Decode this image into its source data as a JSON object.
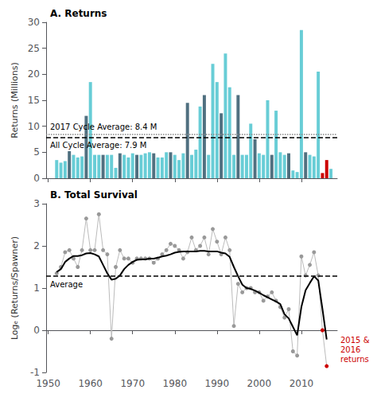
{
  "chart_data": [
    {
      "type": "bar",
      "title": "A. Returns",
      "y_label": "Returns (Millions)",
      "x": [
        1952,
        1953,
        1954,
        1955,
        1956,
        1957,
        1958,
        1959,
        1960,
        1961,
        1962,
        1963,
        1964,
        1965,
        1966,
        1967,
        1968,
        1969,
        1970,
        1971,
        1972,
        1973,
        1974,
        1975,
        1976,
        1977,
        1978,
        1979,
        1980,
        1981,
        1982,
        1983,
        1984,
        1985,
        1986,
        1987,
        1988,
        1989,
        1990,
        1991,
        1992,
        1993,
        1994,
        1995,
        1996,
        1997,
        1998,
        1999,
        2000,
        2001,
        2002,
        2003,
        2004,
        2005,
        2006,
        2007,
        2008,
        2009,
        2010,
        2011,
        2012,
        2013,
        2014,
        2015,
        2016,
        2017
      ],
      "values": [
        3.5,
        3.0,
        3.3,
        5.2,
        4.5,
        4.0,
        4.2,
        12.0,
        18.5,
        4.5,
        4.5,
        4.5,
        4.5,
        4.5,
        2.0,
        4.8,
        4.5,
        4.0,
        4.8,
        4.5,
        4.5,
        4.8,
        5.0,
        4.8,
        4.0,
        4.0,
        5.0,
        5.0,
        4.5,
        3.5,
        4.8,
        14.5,
        4.5,
        5.5,
        13.8,
        16.0,
        4.5,
        22.0,
        18.5,
        12.5,
        24.0,
        17.5,
        4.5,
        16.0,
        4.5,
        4.5,
        10.5,
        7.5,
        4.8,
        4.5,
        15.0,
        4.5,
        13.0,
        5.0,
        4.5,
        4.8,
        1.5,
        1.2,
        28.5,
        5.0,
        4.5,
        4.2,
        20.5,
        1.0,
        3.5,
        1.8
      ],
      "colors": [
        "#68CDD6",
        "#68CDD6",
        "#68CDD6",
        "#507080",
        "#68CDD6",
        "#68CDD6",
        "#68CDD6",
        "#507080",
        "#68CDD6",
        "#68CDD6",
        "#68CDD6",
        "#507080",
        "#68CDD6",
        "#68CDD6",
        "#68CDD6",
        "#507080",
        "#68CDD6",
        "#68CDD6",
        "#68CDD6",
        "#507080",
        "#68CDD6",
        "#68CDD6",
        "#68CDD6",
        "#507080",
        "#68CDD6",
        "#68CDD6",
        "#68CDD6",
        "#507080",
        "#68CDD6",
        "#68CDD6",
        "#68CDD6",
        "#507080",
        "#68CDD6",
        "#68CDD6",
        "#68CDD6",
        "#507080",
        "#68CDD6",
        "#68CDD6",
        "#68CDD6",
        "#507080",
        "#68CDD6",
        "#68CDD6",
        "#68CDD6",
        "#507080",
        "#68CDD6",
        "#68CDD6",
        "#68CDD6",
        "#507080",
        "#68CDD6",
        "#68CDD6",
        "#68CDD6",
        "#507080",
        "#68CDD6",
        "#68CDD6",
        "#68CDD6",
        "#507080",
        "#68CDD6",
        "#68CDD6",
        "#68CDD6",
        "#507080",
        "#68CDD6",
        "#68CDD6",
        "#68CDD6",
        "#CC0000",
        "#CC0000",
        "#68CDD6"
      ],
      "xlim": [
        1949.5,
        2018.5
      ],
      "xticks": [
        1950,
        1960,
        1970,
        1980,
        1990,
        2000,
        2010
      ],
      "ylim": [
        0,
        30
      ],
      "yticks": [
        0,
        5,
        10,
        15,
        20,
        25,
        30
      ],
      "tick_labels": "y",
      "grid": false,
      "reference_lines": [
        {
          "value": 8.4,
          "label": "2017 Cycle Average: 8.4 M",
          "color": "#888888",
          "line_style": "dotted"
        },
        {
          "value": 7.9,
          "label": "All Cycle Average: 7.9 M",
          "color": "#000000",
          "line_style": "dashed"
        }
      ]
    },
    {
      "type": "line",
      "title": "B. Total Survival",
      "y_label": "Logₑ (Returns/Spawner)",
      "x": [
        1952,
        1953,
        1954,
        1955,
        1956,
        1957,
        1958,
        1959,
        1960,
        1961,
        1962,
        1963,
        1964,
        1965,
        1966,
        1967,
        1968,
        1969,
        1970,
        1971,
        1972,
        1973,
        1974,
        1975,
        1976,
        1977,
        1978,
        1979,
        1980,
        1981,
        1982,
        1983,
        1984,
        1985,
        1986,
        1987,
        1988,
        1989,
        1990,
        1991,
        1992,
        1993,
        1994,
        1995,
        1996,
        1997,
        1998,
        1999,
        2000,
        2001,
        2002,
        2003,
        2004,
        2005,
        2006,
        2007,
        2008,
        2009,
        2010,
        2011,
        2012,
        2013,
        2014,
        2015,
        2016
      ],
      "series": [
        {
          "type": "line",
          "color": "#BBBBBB",
          "marker": "circle",
          "values": [
            1.35,
            1.5,
            1.85,
            1.9,
            1.7,
            1.5,
            1.9,
            2.65,
            1.9,
            1.9,
            2.75,
            1.9,
            1.8,
            -0.2,
            1.5,
            1.9,
            1.7,
            1.7,
            1.6,
            1.7,
            1.7,
            1.7,
            1.7,
            1.6,
            1.7,
            1.8,
            1.9,
            2.05,
            2.0,
            1.9,
            1.7,
            1.85,
            2.2,
            1.9,
            2.0,
            2.2,
            1.8,
            2.4,
            2.1,
            1.8,
            2.2,
            1.9,
            0.1,
            1.1,
            0.9,
            1.0,
            1.0,
            0.9,
            0.9,
            0.7,
            0.8,
            0.9,
            0.7,
            0.55,
            0.3,
            0.5,
            -0.5,
            -0.6,
            1.75,
            1.3,
            1.55,
            1.85,
            1.3,
            0.0,
            -0.85
          ],
          "colors": [
            "#999999",
            "#999999",
            "#999999",
            "#999999",
            "#999999",
            "#999999",
            "#999999",
            "#999999",
            "#999999",
            "#999999",
            "#999999",
            "#999999",
            "#999999",
            "#999999",
            "#999999",
            "#999999",
            "#999999",
            "#999999",
            "#999999",
            "#999999",
            "#999999",
            "#999999",
            "#999999",
            "#999999",
            "#999999",
            "#999999",
            "#999999",
            "#999999",
            "#999999",
            "#999999",
            "#999999",
            "#999999",
            "#999999",
            "#999999",
            "#999999",
            "#999999",
            "#999999",
            "#999999",
            "#999999",
            "#999999",
            "#999999",
            "#999999",
            "#999999",
            "#999999",
            "#999999",
            "#999999",
            "#999999",
            "#999999",
            "#999999",
            "#999999",
            "#999999",
            "#999999",
            "#999999",
            "#999999",
            "#999999",
            "#999999",
            "#999999",
            "#999999",
            "#999999",
            "#999999",
            "#999999",
            "#999999",
            "#999999",
            "#CC0000",
            "#CC0000"
          ]
        },
        {
          "type": "line",
          "color": "#000000",
          "marker": "none",
          "values": [
            1.38,
            1.45,
            1.62,
            1.7,
            1.76,
            1.76,
            1.78,
            1.82,
            1.83,
            1.8,
            1.75,
            1.55,
            1.35,
            1.2,
            1.22,
            1.3,
            1.45,
            1.55,
            1.62,
            1.67,
            1.68,
            1.68,
            1.7,
            1.7,
            1.72,
            1.75,
            1.77,
            1.8,
            1.84,
            1.86,
            1.87,
            1.87,
            1.87,
            1.87,
            1.88,
            1.88,
            1.87,
            1.87,
            1.87,
            1.84,
            1.82,
            1.74,
            1.5,
            1.28,
            1.08,
            1.0,
            0.98,
            0.94,
            0.89,
            0.83,
            0.78,
            0.73,
            0.68,
            0.62,
            0.38,
            0.28,
            0.08,
            -0.12,
            0.55,
            0.95,
            1.12,
            1.28,
            1.18,
            0.5,
            -0.22
          ]
        }
      ],
      "xlim": [
        1949.5,
        2018.5
      ],
      "xticks": [
        1950,
        1960,
        1970,
        1980,
        1990,
        2000,
        2010
      ],
      "ylim": [
        -1,
        3
      ],
      "yticks": [
        -1,
        0,
        1,
        2,
        3
      ],
      "grid": false,
      "reference_lines": [
        {
          "value": 1.28,
          "label": "Average",
          "color": "#000000",
          "line_style": "dashed"
        }
      ],
      "annotations": [
        {
          "text": "2015 &\n2016\nreturns",
          "color": "#CC0000"
        }
      ]
    }
  ]
}
